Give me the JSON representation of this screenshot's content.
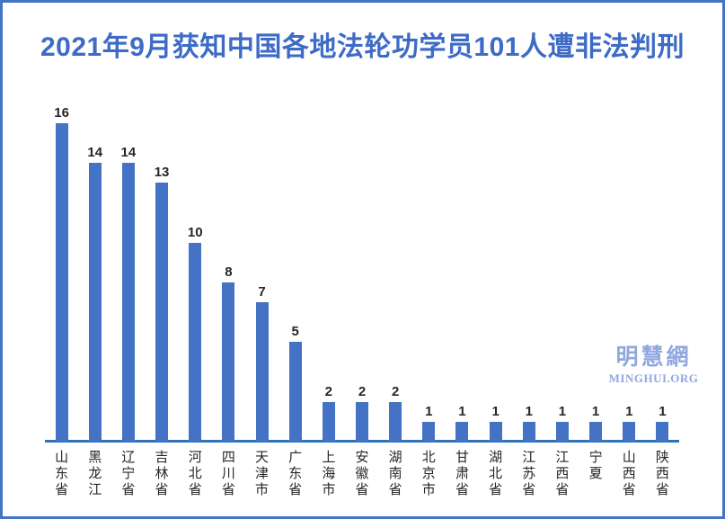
{
  "title": "2021年9月获知中国各地法轮功学员101人遭非法判刑",
  "watermark": {
    "cjk": "明慧網",
    "latin": "MINGHUI.ORG"
  },
  "colors": {
    "bar": "#4472C4",
    "axis": "#2E75B6",
    "title": "#3D6BC6",
    "border": "#4472C4",
    "watermark": "#92A7DE",
    "label": "#262626"
  },
  "chart_data": {
    "type": "bar",
    "title": "2021年9月获知中国各地法轮功学员101人遭非法判刑",
    "categories": [
      "山东省",
      "黑龙江",
      "辽宁省",
      "吉林省",
      "河北省",
      "四川省",
      "天津市",
      "广东省",
      "上海市",
      "安徽省",
      "湖南省",
      "北京市",
      "甘肃省",
      "湖北省",
      "江苏省",
      "江西省",
      "宁夏",
      "山西省",
      "陕西省"
    ],
    "values": [
      16,
      14,
      14,
      13,
      10,
      8,
      7,
      5,
      2,
      2,
      2,
      1,
      1,
      1,
      1,
      1,
      1,
      1,
      1
    ],
    "total": 101,
    "xlabel": "",
    "ylabel": "",
    "ylim": [
      0,
      17
    ],
    "grid": false,
    "legend": false,
    "value_labels": true,
    "category_label_orientation": "vertical-stacked"
  }
}
